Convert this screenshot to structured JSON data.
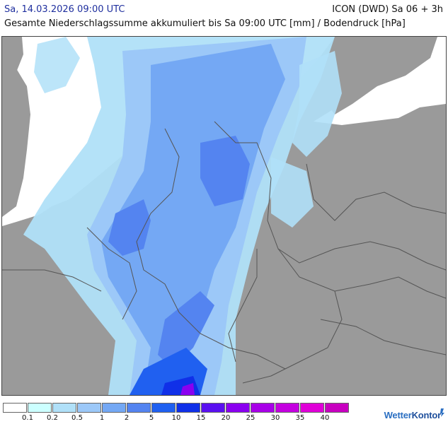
{
  "header": {
    "timestamp": "Sa, 14.03.2026 09:00 UTC",
    "model": "ICON (DWD) Sa 06 + 3h",
    "subtitle": "Gesamte Niederschlagssumme akkumuliert bis Sa 09:00 UTC [mm] / Bodendruck [hPa]"
  },
  "legend": {
    "colors": [
      "#ffffff",
      "#ccffff",
      "#b0e0f8",
      "#9cc8f8",
      "#74a8f4",
      "#5484f0",
      "#2060f0",
      "#1030e8",
      "#5a10f0",
      "#8a00f0",
      "#a800e8",
      "#c400e0",
      "#e000d8",
      "#c800c0"
    ],
    "labels": [
      "0.1",
      "0.2",
      "0.5",
      "1",
      "2",
      "5",
      "10",
      "15",
      "20",
      "25",
      "30",
      "35",
      "40"
    ]
  },
  "branding": {
    "logo_text_a": "Wetter",
    "logo_text_b": "Kontor"
  },
  "colors": {
    "land": "#9a9a9a",
    "sea": "#ffffff",
    "border": "#555555",
    "title_date": "#1f2f9e"
  }
}
